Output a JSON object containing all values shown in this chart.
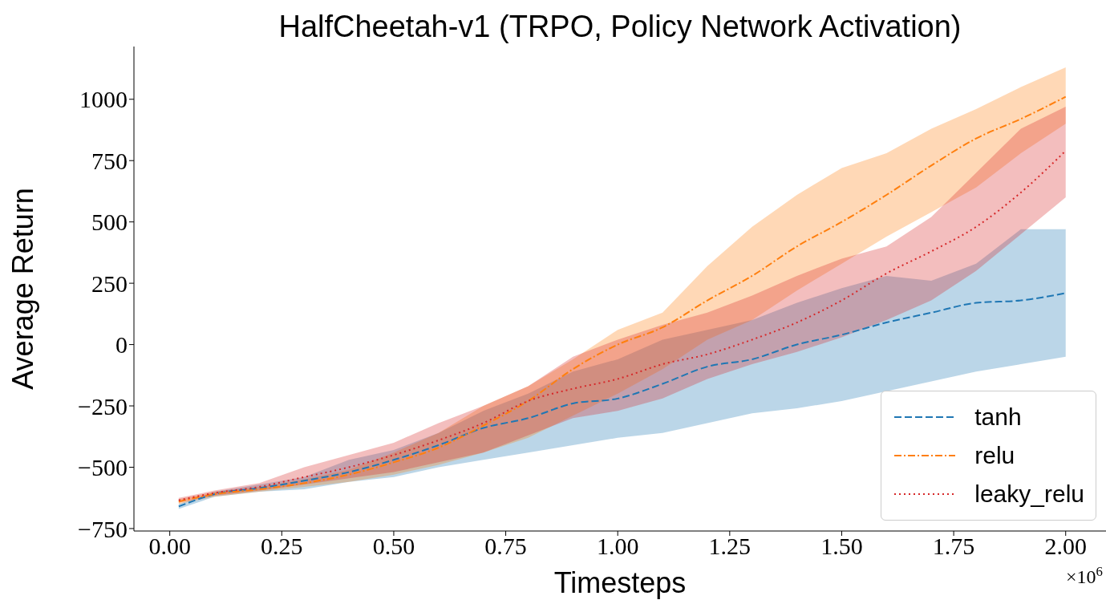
{
  "chart_data": {
    "type": "line",
    "title": "HalfCheetah-v1 (TRPO, Policy Network Activation)",
    "xlabel": "Timesteps",
    "ylabel": "Average Return",
    "x": [
      0.02,
      0.1,
      0.2,
      0.3,
      0.4,
      0.5,
      0.6,
      0.7,
      0.8,
      0.9,
      1.0,
      1.1,
      1.2,
      1.3,
      1.4,
      1.5,
      1.6,
      1.7,
      1.8,
      1.9,
      2.0
    ],
    "series": [
      {
        "name": "tanh",
        "color": "#1f77b4",
        "line_style": "dashed",
        "values": [
          -660,
          -610,
          -585,
          -555,
          -520,
          -470,
          -410,
          -340,
          -300,
          -240,
          -220,
          -160,
          -90,
          -60,
          0,
          40,
          90,
          130,
          170,
          180,
          210
        ],
        "lower": [
          -670,
          -620,
          -600,
          -590,
          -560,
          -540,
          -500,
          -470,
          -440,
          -410,
          -380,
          -360,
          -320,
          -280,
          -260,
          -230,
          -190,
          -150,
          -110,
          -80,
          -50
        ],
        "upper": [
          -650,
          -600,
          -570,
          -540,
          -470,
          -430,
          -360,
          -270,
          -200,
          -110,
          -60,
          20,
          60,
          100,
          170,
          230,
          280,
          260,
          330,
          470,
          470
        ]
      },
      {
        "name": "relu",
        "color": "#ff7f0e",
        "line_style": "dashdot",
        "values": [
          -640,
          -610,
          -590,
          -565,
          -530,
          -480,
          -420,
          -330,
          -230,
          -100,
          0,
          70,
          180,
          280,
          400,
          500,
          610,
          730,
          840,
          920,
          1010
        ],
        "lower": [
          -650,
          -620,
          -600,
          -580,
          -560,
          -530,
          -490,
          -440,
          -380,
          -290,
          -200,
          -100,
          20,
          100,
          220,
          330,
          440,
          540,
          640,
          780,
          900
        ],
        "upper": [
          -630,
          -600,
          -580,
          -550,
          -510,
          -440,
          -360,
          -250,
          -170,
          -60,
          60,
          130,
          320,
          480,
          610,
          720,
          780,
          880,
          960,
          1050,
          1130
        ]
      },
      {
        "name": "leaky_relu",
        "color": "#d62728",
        "line_style": "dotted",
        "values": [
          -635,
          -605,
          -580,
          -540,
          -500,
          -450,
          -390,
          -320,
          -230,
          -180,
          -140,
          -80,
          -40,
          20,
          90,
          180,
          290,
          380,
          480,
          620,
          790
        ],
        "lower": [
          -645,
          -615,
          -595,
          -570,
          -545,
          -520,
          -480,
          -440,
          -370,
          -300,
          -270,
          -220,
          -140,
          -80,
          -30,
          30,
          100,
          180,
          300,
          450,
          600
        ],
        "upper": [
          -625,
          -595,
          -565,
          -500,
          -450,
          -400,
          -320,
          -250,
          -170,
          -50,
          20,
          80,
          130,
          200,
          280,
          350,
          400,
          520,
          700,
          880,
          970
        ]
      }
    ],
    "xlim": [
      -0.08,
      2.09
    ],
    "ylim": [
      -760,
      1215
    ],
    "xticks": [
      {
        "value": 0,
        "label": "0.00"
      },
      {
        "value": 0.25,
        "label": "0.25"
      },
      {
        "value": 0.5,
        "label": "0.50"
      },
      {
        "value": 0.75,
        "label": "0.75"
      },
      {
        "value": 1,
        "label": "1.00"
      },
      {
        "value": 1.25,
        "label": "1.25"
      },
      {
        "value": 1.5,
        "label": "1.50"
      },
      {
        "value": 1.75,
        "label": "1.75"
      },
      {
        "value": 2,
        "label": "2.00"
      }
    ],
    "yticks": [
      {
        "value": -750,
        "label": "−750"
      },
      {
        "value": -500,
        "label": "−500"
      },
      {
        "value": -250,
        "label": "−250"
      },
      0,
      250,
      500,
      750,
      1000
    ],
    "annotations": [
      "×10$^{6}$"
    ],
    "legend": "bottom right"
  }
}
